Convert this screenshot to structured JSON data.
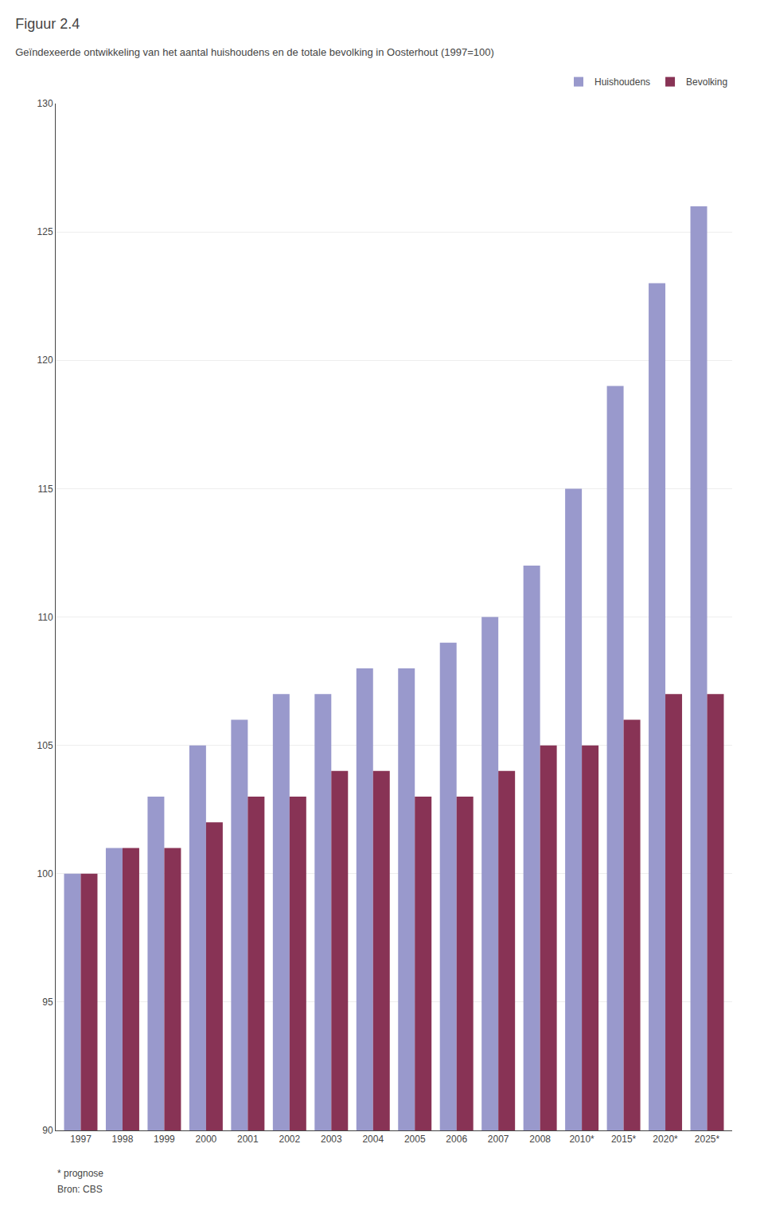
{
  "chart_data": {
    "type": "bar",
    "title": "Figuur 2.4",
    "subtitle": "Geïndexeerde ontwikkeling van het aantal huishoudens en de totale bevolking in Oosterhout (1997=100)",
    "categories": [
      "1997",
      "1998",
      "1999",
      "2000",
      "2001",
      "2002",
      "2003",
      "2004",
      "2005",
      "2006",
      "2007",
      "2008",
      "2010*",
      "2015*",
      "2020*",
      "2025*"
    ],
    "series": [
      {
        "name": "Huishoudens",
        "color": "#9999cc",
        "values": [
          100,
          101,
          103,
          105,
          106,
          107,
          107,
          108,
          108,
          109,
          110,
          112,
          115,
          119,
          123,
          126
        ]
      },
      {
        "name": "Bevolking",
        "color": "#883355",
        "values": [
          100,
          101,
          101,
          102,
          103,
          103,
          104,
          104,
          103,
          103,
          104,
          105,
          105,
          106,
          107,
          107
        ]
      }
    ],
    "ylim": [
      90,
      130
    ],
    "yticks": [
      90,
      95,
      100,
      105,
      110,
      115,
      120,
      125,
      130
    ],
    "grid": true,
    "legend": "upper right",
    "annotations": [
      "* prognose",
      "Bron: CBS"
    ]
  }
}
